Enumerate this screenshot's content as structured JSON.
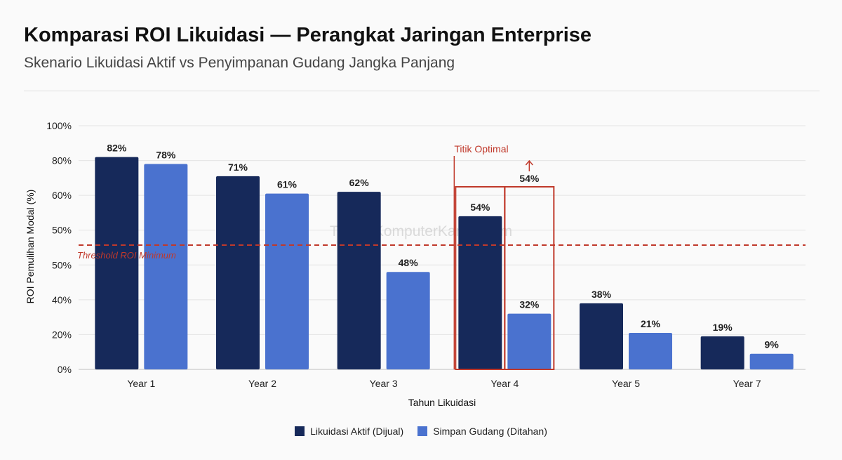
{
  "header": {
    "title": "Komparasi ROI Likuidasi — Perangkat Jaringan Enterprise",
    "subtitle": "Skenario Likuidasi Aktif vs Penyimpanan Gudang Jangka Panjang"
  },
  "colors": {
    "series_1": "#16295a",
    "series_2": "#4a72cf",
    "highlight": "#c0392b",
    "grid": "#e4e4e4"
  },
  "watermark": "TerimaKomputerKantor.com",
  "chart_data": {
    "type": "bar",
    "categories": [
      "Year 1",
      "Year 2",
      "Year 3",
      "Year 4",
      "Year 5",
      "Year 7"
    ],
    "series": [
      {
        "name": "Likuidasi Aktif (Dijual)",
        "values": [
          82,
          71,
          62,
          54,
          38,
          19
        ],
        "labels": [
          "82%",
          "71%",
          "62%",
          "54%",
          "38%",
          "19%"
        ]
      },
      {
        "name": "Simpan Gudang (Ditahan)",
        "values": [
          78,
          61,
          48,
          32,
          21,
          9
        ],
        "labels": [
          "78%",
          "61%",
          "48%",
          "32%",
          "21%",
          "9%"
        ]
      }
    ],
    "xlabel": "Tahun Likuidasi",
    "ylabel": "ROI Pemulihan Modal (%)",
    "ytick_labels": [
      "0%",
      "20%",
      "40%",
      "50%",
      "50%",
      "60%",
      "80%",
      "100%"
    ],
    "ytick_note": "axis ticks as printed (non-uniform); bars scaled to tick positions",
    "grid": true,
    "legend": "bottom-center",
    "threshold": {
      "label": "Threshold ROI Minimum",
      "value": 50
    },
    "annotation": {
      "label": "Titik Optimal",
      "category": "Year 4",
      "extra_label": "54%"
    }
  }
}
